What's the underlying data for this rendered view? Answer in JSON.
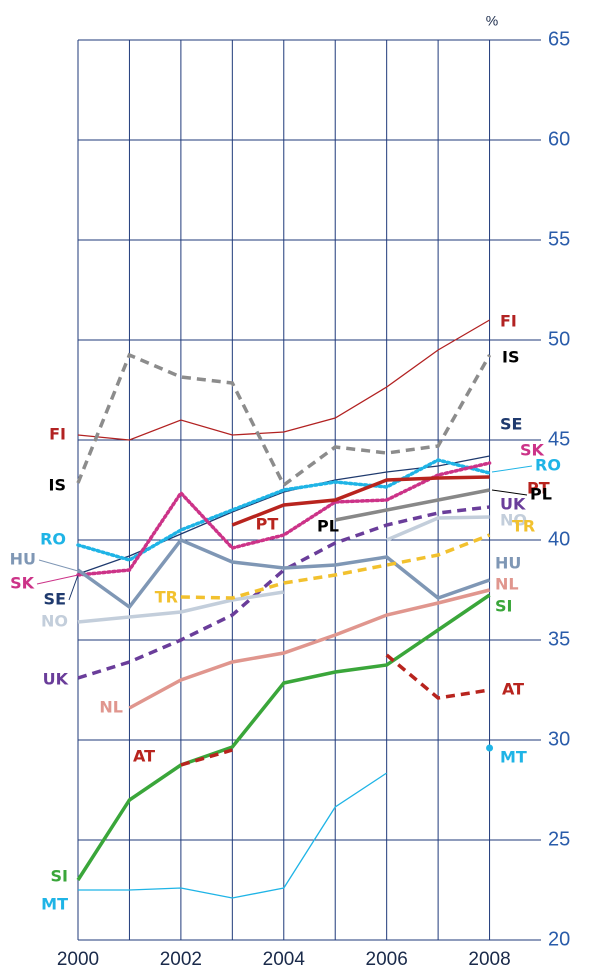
{
  "chart_data": {
    "type": "line",
    "unit_label": "%",
    "x": [
      2000,
      2001,
      2002,
      2003,
      2004,
      2005,
      2006,
      2007,
      2008
    ],
    "xlim": [
      2000,
      2009
    ],
    "xticks": [
      2000,
      2002,
      2004,
      2006,
      2008
    ],
    "xminor": [
      2001,
      2003,
      2005,
      2007
    ],
    "ylim": [
      20,
      65
    ],
    "yticks": [
      20,
      25,
      30,
      35,
      40,
      45,
      50,
      55,
      60,
      65
    ],
    "grid": true,
    "series": [
      {
        "name": "FI",
        "color": "#b22222",
        "style": "solid",
        "weight": "thin",
        "values": [
          45.25,
          45,
          46,
          45.25,
          45.4,
          46.1,
          47.65,
          49.5,
          51
        ]
      },
      {
        "name": "IS",
        "color": "#8c8c8c",
        "style": "dashed",
        "weight": "thick",
        "values": [
          42.85,
          49.25,
          48.15,
          47.85,
          42.75,
          44.65,
          44.35,
          44.7,
          49.25
        ]
      },
      {
        "name": "SE",
        "color": "#1f3a6e",
        "style": "solid",
        "weight": "thin",
        "values": [
          38.3,
          39.2,
          40.3,
          41.4,
          42.4,
          43,
          43.4,
          43.7,
          44.2
        ]
      },
      {
        "name": "RO",
        "color": "#1fb4e6",
        "style": "dotted",
        "weight": "thick",
        "values": [
          39.75,
          39,
          40.5,
          41.5,
          42.5,
          42.9,
          42.65,
          44,
          43.35
        ]
      },
      {
        "name": "SK",
        "color": "#cc3388",
        "style": "dotted",
        "weight": "thick",
        "values": [
          38.25,
          38.5,
          42.35,
          39.6,
          40.25,
          41.9,
          42,
          43.25,
          43.85
        ]
      },
      {
        "name": "PT",
        "color": "#b8241e",
        "style": "solid",
        "weight": "thick",
        "values": [
          null,
          null,
          null,
          40.75,
          41.75,
          42,
          43,
          43.1,
          43.15
        ]
      },
      {
        "name": "PL",
        "color": "#888888",
        "style": "solid",
        "weight": "thick",
        "values": [
          null,
          null,
          null,
          null,
          null,
          41,
          41.5,
          42,
          42.5
        ]
      },
      {
        "name": "UK",
        "color": "#6a3d9a",
        "style": "dashed",
        "weight": "thick",
        "values": [
          33.1,
          33.9,
          35,
          36.25,
          38.5,
          39.85,
          40.75,
          41.35,
          41.65
        ]
      },
      {
        "name": "NO",
        "color": "#c3cedb",
        "style": "solid",
        "weight": "thick",
        "values": [
          35.9,
          36.15,
          36.4,
          37,
          37.4,
          null,
          40,
          41.1,
          41.15
        ]
      },
      {
        "name": "HU",
        "color": "#7f97b5",
        "style": "solid",
        "weight": "thick",
        "values": [
          38.5,
          36.65,
          40,
          38.9,
          38.6,
          38.75,
          39.15,
          37.1,
          38
        ]
      },
      {
        "name": "TR",
        "color": "#f2c12e",
        "style": "dashed",
        "weight": "thick",
        "values": [
          null,
          null,
          37.15,
          37.1,
          37.85,
          38.25,
          38.75,
          39.25,
          40.25
        ]
      },
      {
        "name": "NL",
        "color": "#e0968e",
        "style": "solid",
        "weight": "thick",
        "values": [
          null,
          31.6,
          33,
          33.9,
          34.35,
          35.25,
          36.25,
          36.85,
          37.5
        ]
      },
      {
        "name": "SI",
        "color": "#3aa63a",
        "style": "solid",
        "weight": "thick",
        "values": [
          23,
          27,
          28.75,
          29.65,
          32.85,
          33.4,
          33.75,
          35.5,
          37.25
        ]
      },
      {
        "name": "AT",
        "color": "#b8241e",
        "style": "dashed",
        "weight": "thick",
        "values": [
          null,
          null,
          28.75,
          29.5,
          null,
          null,
          34.25,
          32.1,
          32.5
        ]
      },
      {
        "name": "MT",
        "color": "#1fb4e6",
        "style": "solid",
        "weight": "thin",
        "values": [
          22.5,
          22.5,
          22.6,
          22.1,
          22.6,
          26.65,
          28.35,
          null,
          29.6
        ]
      }
    ]
  }
}
